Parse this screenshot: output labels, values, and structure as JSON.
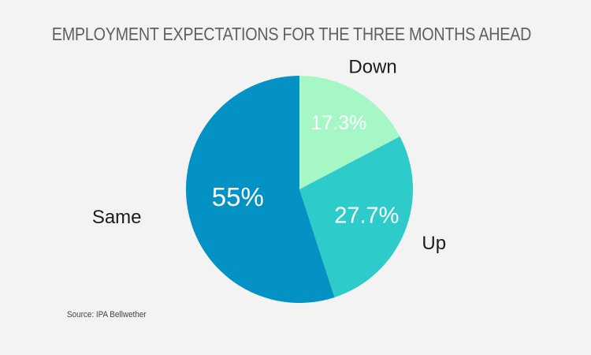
{
  "chart_data": {
    "type": "pie",
    "title": "EMPLOYMENT EXPECTATIONS FOR THE THREE MONTHS AHEAD",
    "slices": [
      {
        "label": "Down",
        "value": 17.3,
        "display": "17.3%",
        "color": "#a6f7c6"
      },
      {
        "label": "Up",
        "value": 27.7,
        "display": "27.7%",
        "color": "#2ecbcb"
      },
      {
        "label": "Same",
        "value": 55,
        "display": "55%",
        "color": "#0491c4"
      }
    ],
    "source": "Source: IPA Bellwether"
  }
}
